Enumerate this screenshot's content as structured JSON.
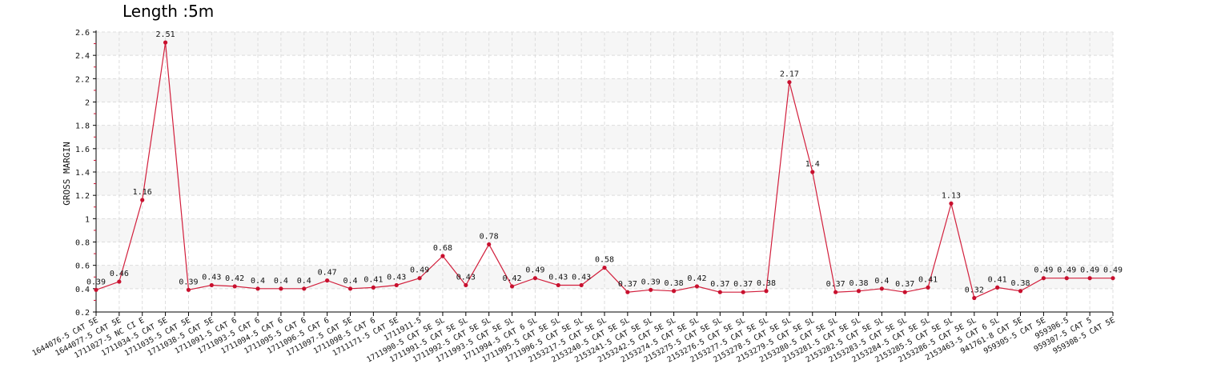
{
  "chart_data": {
    "type": "line",
    "title": "Length :5m",
    "ylabel": "GROSS MARGIN",
    "xlabel": "",
    "ylim": [
      0.2,
      2.6
    ],
    "yticks": [
      0.2,
      0.4,
      0.6,
      0.8,
      1,
      1.2,
      1.4,
      1.6,
      1.8,
      2,
      2.2,
      2.4,
      2.6
    ],
    "grid": true,
    "legend": "none",
    "colors": {
      "line": "#d21f3c",
      "point": "#c8102e",
      "band": "#f6f6f6",
      "grid": "#dddddd"
    },
    "categories": [
      "1644076-5 CAT 5E",
      "1644077-5 CAT 5E",
      "1711027-5 NC CI E",
      "1711034-5 CAT 5E",
      "1711035-5 CAT 5E",
      "1711038-5 CAT 5E",
      "1711091-5 CAT 6",
      "1711093-5 CAT 6",
      "1711094-5 CAT 6",
      "1711095-5 CAT 6",
      "1711096-5 CAT 6",
      "1711097-5 CAT 5E",
      "1711098-5 CAT 6",
      "1711171-5 CAT 5E",
      "1711911-5",
      "1711990-5 CAT 5E SL",
      "1711991-5 CAT 5E SL",
      "1711992-5 CAT 5E SL",
      "1711993-5 CAT 5E SL",
      "1711994-5 CAT 6 SL",
      "1711995-5 CAT 5E SL",
      "1711996-5 CAT 5E SL",
      "2153217-5 CAT 5E SL",
      "2153240-5 CAT 5E SL",
      "2153241-5 CAT 5E SL",
      "2153242-5 CAT 5E SL",
      "2153274-5 CAT 5E SL",
      "2153275-5 CAT 5E SL",
      "2153276-5 CAT 5E SL",
      "2153277-5 CAT 5E SL",
      "2153278-5 CAT 5E SL",
      "2153279-5 CAT 5E SL",
      "2153280-5 CAT 5E SL",
      "2153281-5 CAT 5E SL",
      "2153282-5 CAT 5E SL",
      "2153283-5 CAT 5E SL",
      "2153284-5 CAT 5E SL",
      "2153285-5 CAT 5E SL",
      "2153286-5 CAT 5E SL",
      "2153463-5 CAT 6 SL",
      "941761-8 CAT 5E",
      "959305-5 CAT 5E",
      "959306-5",
      "959307-5 CAT 5",
      "959308-5 CAT 5E"
    ],
    "series": [
      {
        "values": [
          0.39,
          0.46,
          1.16,
          2.51,
          0.39,
          0.43,
          0.42,
          0.4,
          0.4,
          0.4,
          0.47,
          0.4,
          0.41,
          0.43,
          0.49,
          0.68,
          0.43,
          0.78,
          0.42,
          0.49,
          0.43,
          0.43,
          0.58,
          0.37,
          0.39,
          0.38,
          0.42,
          0.37,
          0.37,
          0.38,
          2.17,
          1.4,
          0.37,
          0.38,
          0.4,
          0.37,
          0.41,
          1.13,
          0.32,
          0.41,
          0.38,
          0.49,
          0.49,
          0.49,
          0.49
        ],
        "labels": [
          "0.39",
          "0.46",
          "1.16",
          "2.51",
          "0.39",
          "0.43",
          "0.42",
          "0.4",
          "0.4",
          "0.4",
          "0.47",
          "0.4",
          "0.41",
          "0.43",
          "0.49",
          "0.68",
          "0.43",
          "0.78",
          "0.42",
          "0.49",
          "0.43",
          "0.43",
          "0.58",
          "0.37",
          "0.39",
          "0.38",
          "0.42",
          "0.37",
          "0.37",
          "0.38",
          "2.17",
          "1.4",
          "0.37",
          "0.38",
          "0.4",
          "0.37",
          "0.41",
          "1.13",
          "0.32",
          "0.41",
          "0.38",
          "0.49",
          "0.49",
          "0.49",
          "0.49"
        ]
      }
    ]
  }
}
